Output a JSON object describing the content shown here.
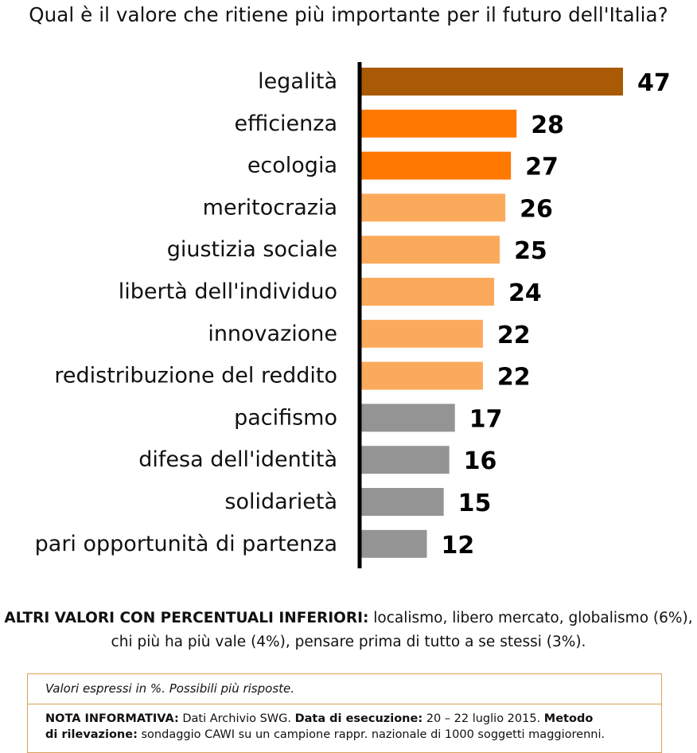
{
  "title": "Qual è il valore che ritiene più importante per il futuro dell'Italia?",
  "colors": {
    "top": "#a85a05",
    "high": "#ff7800",
    "mid": "#fbaa5c",
    "low": "#949494",
    "axis": "#000000"
  },
  "chart_data": {
    "type": "bar",
    "orientation": "horizontal",
    "title": "Qual è il valore che ritiene più importante per il futuro dell'Italia?",
    "categories": [
      "legalità",
      "efficienza",
      "ecologia",
      "meritocrazia",
      "giustizia sociale",
      "libertà dell'individuo",
      "innovazione",
      "redistribuzione del reddito",
      "pacifismo",
      "difesa dell'identità",
      "solidarietà",
      "pari opportunità di partenza"
    ],
    "values": [
      47,
      28,
      27,
      26,
      25,
      24,
      22,
      22,
      17,
      16,
      15,
      12
    ],
    "value_labels": [
      "47",
      "28",
      "27",
      "26",
      "25",
      "24",
      "22",
      "22",
      "17",
      "16",
      "15",
      "12"
    ],
    "bar_colors": [
      "top",
      "high",
      "high",
      "mid",
      "mid",
      "mid",
      "mid",
      "mid",
      "low",
      "low",
      "low",
      "low"
    ],
    "xlim": [
      0,
      47
    ],
    "grid": false,
    "legend": "none"
  },
  "others": {
    "lead": "ALTRI VALORI CON PERCENTUALI INFERIORI:",
    "line1": "localismo, libero mercato, globalismo (6%),",
    "line2": "chi più ha più vale (4%), pensare prima di tutto a se stessi (3%)."
  },
  "note": {
    "values_note": "Valori espressi in %. Possibili più risposte.",
    "info_label": "NOTA INFORMATIVA:",
    "info_text": "Dati Archivio SWG.",
    "date_label": "Data di esecuzione:",
    "date_text": "20 – 22 luglio 2015.",
    "method_label_1": "Metodo",
    "method_label_2": "di rilevazione:",
    "method_text": "sondaggio CAWI su un campione rappr. nazionale di 1000 soggetti maggiorenni."
  }
}
